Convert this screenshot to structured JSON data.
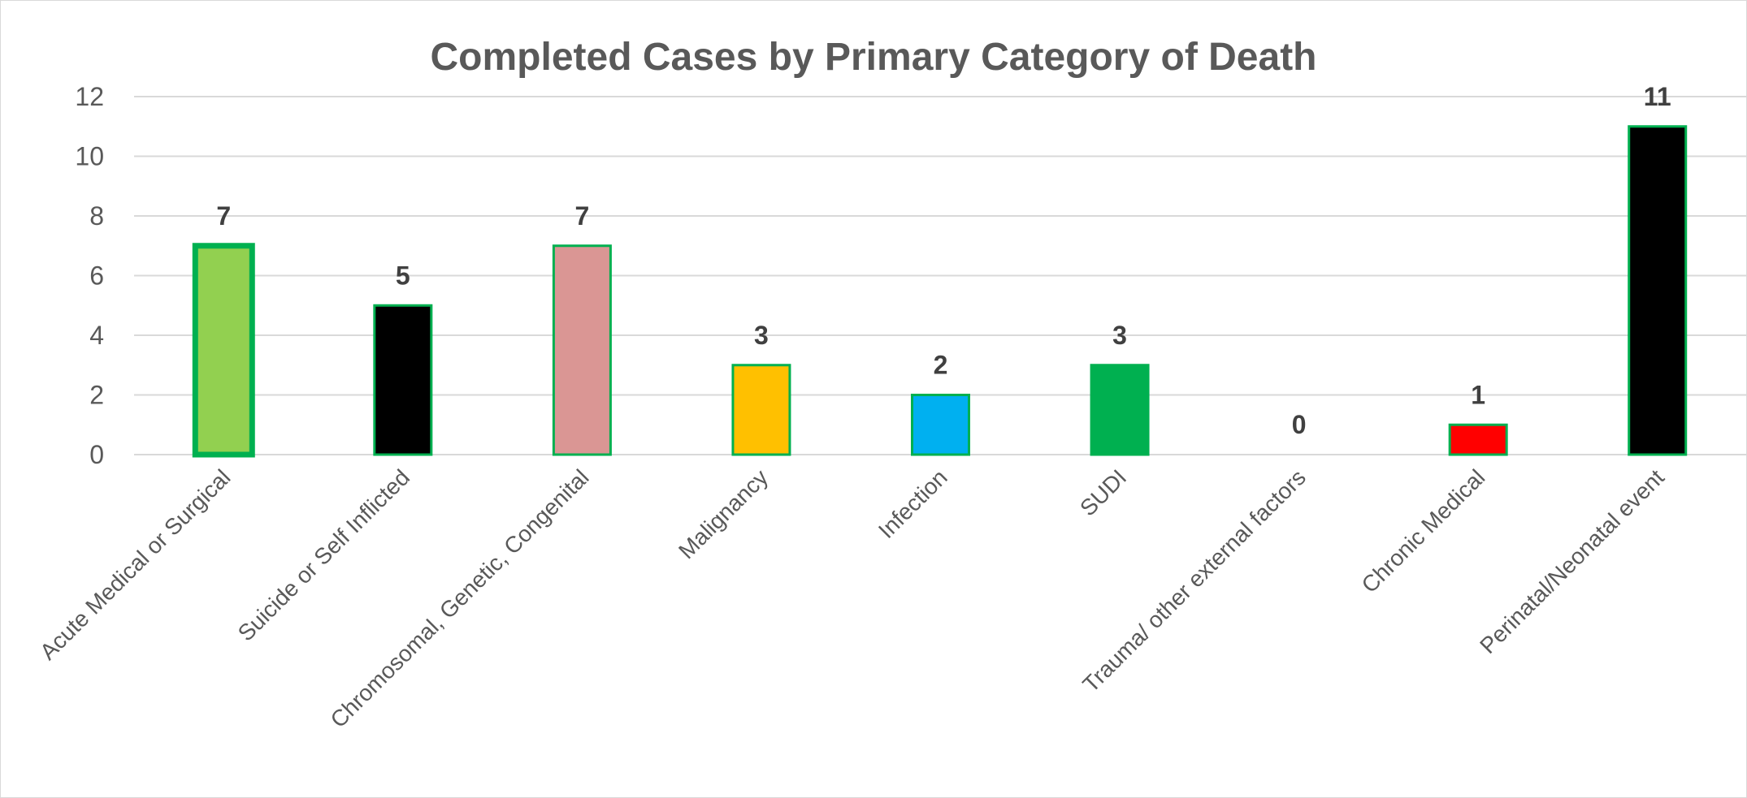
{
  "chart_data": {
    "type": "bar",
    "title": "Completed Cases by Primary Category of Death",
    "xlabel": "",
    "ylabel": "",
    "ylim": [
      0,
      12
    ],
    "yticks": [
      0,
      2,
      4,
      6,
      8,
      10,
      12
    ],
    "grid": true,
    "legend": "none",
    "categories": [
      "Acute Medical or Surgical",
      "Suicide or Self Inflicted",
      "Chromosomal, Genetic, Congenital",
      "Malignancy",
      "Infection",
      "SUDI",
      "Trauma/ other external factors",
      "Chronic Medical",
      "Perinatal/Neonatal event"
    ],
    "values": [
      7,
      5,
      7,
      3,
      2,
      3,
      0,
      1,
      11
    ],
    "colors": [
      "#92d050",
      "#000000",
      "#da9694",
      "#ffc000",
      "#00b0f0",
      "#00b050",
      "#ffffff",
      "#ff0000",
      "#000000"
    ],
    "border_color": "#00b050",
    "data_labels": [
      "7",
      "5",
      "7",
      "3",
      "2",
      "3",
      "0",
      "1",
      "11"
    ]
  }
}
